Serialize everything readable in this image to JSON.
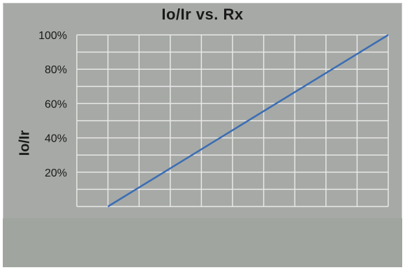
{
  "chart_data": {
    "type": "line",
    "title": "Io/Ir vs. Rx",
    "xlabel": "",
    "ylabel": "Io/Ir",
    "y_ticks": [
      "20%",
      "40%",
      "60%",
      "80%",
      "100%"
    ],
    "y_tick_values": [
      20,
      40,
      60,
      80,
      100
    ],
    "ylim": [
      0,
      100
    ],
    "xlim": [
      0,
      10
    ],
    "grid": true,
    "series": [
      {
        "x": [
          1,
          10
        ],
        "values": [
          0,
          100
        ],
        "color": "#3a6db5"
      }
    ]
  },
  "colors": {
    "plot_background": "#a6a9a5",
    "grid": "#e8e8e8",
    "line": "#3a6db5",
    "text": "#1a1a1a"
  }
}
